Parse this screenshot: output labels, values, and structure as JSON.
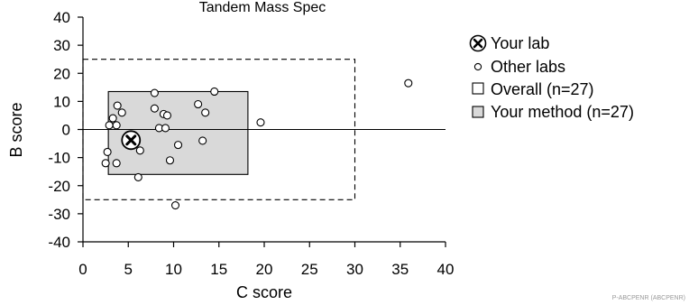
{
  "chart_data": {
    "type": "scatter",
    "title": "Tandem Mass Spec",
    "xlabel": "C score",
    "ylabel": "B score",
    "xlim": [
      0,
      40
    ],
    "ylim": [
      -40,
      40
    ],
    "x_ticks": [
      "0",
      "5",
      "10",
      "15",
      "20",
      "25",
      "30",
      "35",
      "40"
    ],
    "y_ticks": [
      "40",
      "30",
      "20",
      "10",
      "0",
      "-10",
      "-20",
      "-30",
      "-40"
    ],
    "overall_range": {
      "x": [
        0,
        30
      ],
      "y": [
        -25,
        25
      ]
    },
    "method_range": {
      "x": [
        2.8,
        18.2
      ],
      "y": [
        -16,
        13.5
      ]
    },
    "your_lab": {
      "x": 5.3,
      "y": -3.8
    },
    "other_labs": [
      {
        "x": 2.5,
        "y": -12
      },
      {
        "x": 2.7,
        "y": -8
      },
      {
        "x": 2.9,
        "y": 1.5
      },
      {
        "x": 3.3,
        "y": 4
      },
      {
        "x": 3.7,
        "y": 1.5
      },
      {
        "x": 3.7,
        "y": -12
      },
      {
        "x": 3.8,
        "y": 8.5
      },
      {
        "x": 4.3,
        "y": 6
      },
      {
        "x": 6.1,
        "y": -17
      },
      {
        "x": 6.3,
        "y": -7.5
      },
      {
        "x": 7.9,
        "y": 13
      },
      {
        "x": 7.9,
        "y": 7.5
      },
      {
        "x": 8.4,
        "y": 0.5
      },
      {
        "x": 8.9,
        "y": 5.5
      },
      {
        "x": 9.1,
        "y": 0.5
      },
      {
        "x": 9.3,
        "y": 5
      },
      {
        "x": 9.6,
        "y": -11
      },
      {
        "x": 10.2,
        "y": -27
      },
      {
        "x": 10.5,
        "y": -5.5
      },
      {
        "x": 12.7,
        "y": 9
      },
      {
        "x": 13.2,
        "y": -4
      },
      {
        "x": 13.5,
        "y": 6
      },
      {
        "x": 14.5,
        "y": 13.5
      },
      {
        "x": 19.6,
        "y": 2.5
      },
      {
        "x": 35.9,
        "y": 16.5
      }
    ],
    "legend": {
      "placement": "right",
      "your_lab": "Your lab",
      "other_labs": "Other labs",
      "overall": "Overall (n=27)",
      "method": "Your method (n=27)"
    },
    "colors": {
      "method_fill": "#d9d9d9",
      "stroke": "#000000",
      "marker_fill": "#ffffff"
    }
  },
  "footnote": "P-ABCPENR (ABCPENR)"
}
